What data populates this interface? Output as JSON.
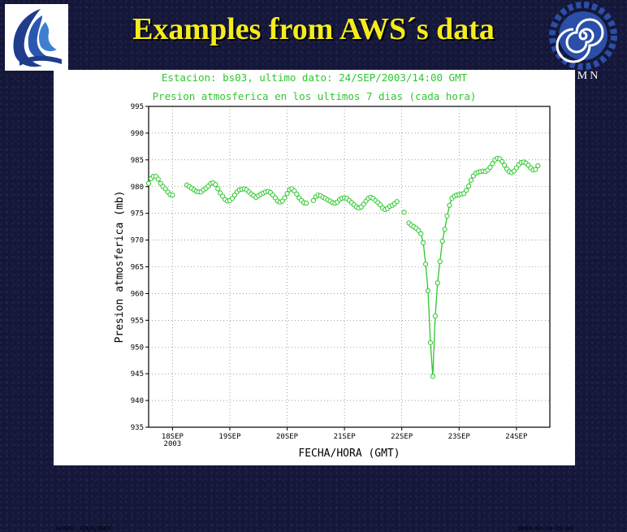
{
  "slide": {
    "title": "Examples from AWS´s data"
  },
  "logos": {
    "left": "hydrology-agency-logo",
    "right": "smn-spiral-logo",
    "right_text": "SMN"
  },
  "chart_data": {
    "type": "line",
    "header_line_1": "Estacion: bs03, ultimo dato: 24/SEP/2003/14:00 GMT",
    "header_line_2": "Presion atmosferica en los ultimos 7 dias (cada hora)",
    "xlabel": "FECHA/HORA (GMT)",
    "ylabel": "Presion atmosferica (mb)",
    "ylim": [
      935,
      995
    ],
    "yticks": [
      935,
      940,
      945,
      950,
      955,
      960,
      965,
      970,
      975,
      980,
      985,
      990,
      995
    ],
    "xlim": [
      "2003-09-17T14:00",
      "2003-09-24T14:00"
    ],
    "xticks": [
      "18SEP",
      "19SEP",
      "20SEP",
      "21SEP",
      "22SEP",
      "23SEP",
      "24SEP"
    ],
    "xtick_year": "2003",
    "grid": "dotted",
    "line_color": "#2ec72e",
    "series": [
      {
        "points": [
          [
            "2003-09-17T14:00",
            980.6
          ],
          [
            "2003-09-17T15:00",
            981.5
          ],
          [
            "2003-09-17T16:00",
            981.9
          ],
          [
            "2003-09-17T17:00",
            981.9
          ],
          [
            "2003-09-17T18:00",
            981.4
          ],
          [
            "2003-09-17T19:00",
            980.6
          ],
          [
            "2003-09-17T20:00",
            980.0
          ],
          [
            "2003-09-17T21:00",
            979.6
          ],
          [
            "2003-09-17T22:00",
            979.0
          ],
          [
            "2003-09-17T23:00",
            978.5
          ],
          [
            "2003-09-18T00:00",
            978.4
          ],
          [
            "2003-09-18T01:00",
            null
          ],
          [
            "2003-09-18T02:00",
            null
          ],
          [
            "2003-09-18T03:00",
            null
          ],
          [
            "2003-09-18T04:00",
            null
          ],
          [
            "2003-09-18T05:00",
            null
          ],
          [
            "2003-09-18T06:00",
            980.3
          ],
          [
            "2003-09-18T07:00",
            980.0
          ],
          [
            "2003-09-18T08:00",
            979.7
          ],
          [
            "2003-09-18T09:00",
            979.4
          ],
          [
            "2003-09-18T10:00",
            979.1
          ],
          [
            "2003-09-18T11:00",
            979.0
          ],
          [
            "2003-09-18T12:00",
            979.0
          ],
          [
            "2003-09-18T13:00",
            979.4
          ],
          [
            "2003-09-18T14:00",
            979.7
          ],
          [
            "2003-09-18T15:00",
            980.1
          ],
          [
            "2003-09-18T16:00",
            980.6
          ],
          [
            "2003-09-18T17:00",
            980.7
          ],
          [
            "2003-09-18T18:00",
            980.4
          ],
          [
            "2003-09-18T19:00",
            979.6
          ],
          [
            "2003-09-18T20:00",
            978.8
          ],
          [
            "2003-09-18T21:00",
            978.2
          ],
          [
            "2003-09-18T22:00",
            977.6
          ],
          [
            "2003-09-18T23:00",
            977.3
          ],
          [
            "2003-09-19T00:00",
            977.4
          ],
          [
            "2003-09-19T01:00",
            977.8
          ],
          [
            "2003-09-19T02:00",
            978.4
          ],
          [
            "2003-09-19T03:00",
            979.0
          ],
          [
            "2003-09-19T04:00",
            979.4
          ],
          [
            "2003-09-19T05:00",
            979.5
          ],
          [
            "2003-09-19T06:00",
            979.6
          ],
          [
            "2003-09-19T07:00",
            979.4
          ],
          [
            "2003-09-19T08:00",
            979.0
          ],
          [
            "2003-09-19T09:00",
            978.6
          ],
          [
            "2003-09-19T10:00",
            978.3
          ],
          [
            "2003-09-19T11:00",
            978.0
          ],
          [
            "2003-09-19T12:00",
            978.3
          ],
          [
            "2003-09-19T13:00",
            978.6
          ],
          [
            "2003-09-19T14:00",
            978.8
          ],
          [
            "2003-09-19T15:00",
            979.0
          ],
          [
            "2003-09-19T16:00",
            979.1
          ],
          [
            "2003-09-19T17:00",
            978.9
          ],
          [
            "2003-09-19T18:00",
            978.4
          ],
          [
            "2003-09-19T19:00",
            977.9
          ],
          [
            "2003-09-19T20:00",
            977.3
          ],
          [
            "2003-09-19T21:00",
            977.1
          ],
          [
            "2003-09-19T22:00",
            977.3
          ],
          [
            "2003-09-19T23:00",
            977.9
          ],
          [
            "2003-09-20T00:00",
            978.7
          ],
          [
            "2003-09-20T01:00",
            979.4
          ],
          [
            "2003-09-20T02:00",
            979.6
          ],
          [
            "2003-09-20T03:00",
            979.2
          ],
          [
            "2003-09-20T04:00",
            978.6
          ],
          [
            "2003-09-20T05:00",
            977.9
          ],
          [
            "2003-09-20T06:00",
            977.4
          ],
          [
            "2003-09-20T07:00",
            977.0
          ],
          [
            "2003-09-20T08:00",
            976.9
          ],
          [
            "2003-09-20T09:00",
            null
          ],
          [
            "2003-09-20T10:00",
            null
          ],
          [
            "2003-09-20T11:00",
            977.4
          ],
          [
            "2003-09-20T12:00",
            978.1
          ],
          [
            "2003-09-20T13:00",
            978.4
          ],
          [
            "2003-09-20T14:00",
            978.3
          ],
          [
            "2003-09-20T15:00",
            978.0
          ],
          [
            "2003-09-20T16:00",
            977.8
          ],
          [
            "2003-09-20T17:00",
            977.5
          ],
          [
            "2003-09-20T18:00",
            977.3
          ],
          [
            "2003-09-20T19:00",
            977.0
          ],
          [
            "2003-09-20T20:00",
            976.9
          ],
          [
            "2003-09-20T21:00",
            977.1
          ],
          [
            "2003-09-20T22:00",
            977.6
          ],
          [
            "2003-09-20T23:00",
            977.8
          ],
          [
            "2003-09-21T00:00",
            977.9
          ],
          [
            "2003-09-21T01:00",
            977.8
          ],
          [
            "2003-09-21T02:00",
            977.4
          ],
          [
            "2003-09-21T03:00",
            977.0
          ],
          [
            "2003-09-21T04:00",
            976.6
          ],
          [
            "2003-09-21T05:00",
            976.2
          ],
          [
            "2003-09-21T06:00",
            976.0
          ],
          [
            "2003-09-21T07:00",
            976.2
          ],
          [
            "2003-09-21T08:00",
            976.7
          ],
          [
            "2003-09-21T09:00",
            977.3
          ],
          [
            "2003-09-21T10:00",
            977.8
          ],
          [
            "2003-09-21T11:00",
            978.0
          ],
          [
            "2003-09-21T12:00",
            977.8
          ],
          [
            "2003-09-21T13:00",
            977.4
          ],
          [
            "2003-09-21T14:00",
            977.0
          ],
          [
            "2003-09-21T15:00",
            976.6
          ],
          [
            "2003-09-21T16:00",
            976.0
          ],
          [
            "2003-09-21T17:00",
            975.7
          ],
          [
            "2003-09-21T18:00",
            975.9
          ],
          [
            "2003-09-21T19:00",
            976.3
          ],
          [
            "2003-09-21T20:00",
            976.5
          ],
          [
            "2003-09-21T21:00",
            976.8
          ],
          [
            "2003-09-21T22:00",
            977.2
          ],
          [
            "2003-09-21T23:00",
            null
          ],
          [
            "2003-09-22T00:00",
            null
          ],
          [
            "2003-09-22T01:00",
            975.2
          ],
          [
            "2003-09-22T02:00",
            null
          ],
          [
            "2003-09-22T03:00",
            973.2
          ],
          [
            "2003-09-22T04:00",
            972.8
          ],
          [
            "2003-09-22T05:00",
            972.5
          ],
          [
            "2003-09-22T06:00",
            972.2
          ],
          [
            "2003-09-22T07:00",
            971.8
          ],
          [
            "2003-09-22T08:00",
            971.2
          ],
          [
            "2003-09-22T09:00",
            969.5
          ],
          [
            "2003-09-22T10:00",
            965.5
          ],
          [
            "2003-09-22T11:00",
            960.5
          ],
          [
            "2003-09-22T12:00",
            950.8
          ],
          [
            "2003-09-22T13:00",
            944.5
          ],
          [
            "2003-09-22T14:00",
            955.8
          ],
          [
            "2003-09-22T15:00",
            962.0
          ],
          [
            "2003-09-22T16:00",
            966.0
          ],
          [
            "2003-09-22T17:00",
            969.8
          ],
          [
            "2003-09-22T18:00",
            972.0
          ],
          [
            "2003-09-22T19:00",
            974.5
          ],
          [
            "2003-09-22T20:00",
            976.5
          ],
          [
            "2003-09-22T21:00",
            977.8
          ],
          [
            "2003-09-22T22:00",
            978.2
          ],
          [
            "2003-09-22T23:00",
            978.4
          ],
          [
            "2003-09-23T00:00",
            978.5
          ],
          [
            "2003-09-23T01:00",
            978.6
          ],
          [
            "2003-09-23T02:00",
            978.7
          ],
          [
            "2003-09-23T03:00",
            979.3
          ],
          [
            "2003-09-23T04:00",
            980.1
          ],
          [
            "2003-09-23T05:00",
            981.2
          ],
          [
            "2003-09-23T06:00",
            982.0
          ],
          [
            "2003-09-23T07:00",
            982.5
          ],
          [
            "2003-09-23T08:00",
            982.7
          ],
          [
            "2003-09-23T09:00",
            982.8
          ],
          [
            "2003-09-23T10:00",
            982.9
          ],
          [
            "2003-09-23T11:00",
            982.8
          ],
          [
            "2003-09-23T12:00",
            983.1
          ],
          [
            "2003-09-23T13:00",
            983.6
          ],
          [
            "2003-09-23T14:00",
            984.3
          ],
          [
            "2003-09-23T15:00",
            985.0
          ],
          [
            "2003-09-23T16:00",
            985.3
          ],
          [
            "2003-09-23T17:00",
            985.2
          ],
          [
            "2003-09-23T18:00",
            984.7
          ],
          [
            "2003-09-23T19:00",
            984.0
          ],
          [
            "2003-09-23T20:00",
            983.3
          ],
          [
            "2003-09-23T21:00",
            982.8
          ],
          [
            "2003-09-23T22:00",
            982.6
          ],
          [
            "2003-09-23T23:00",
            982.9
          ],
          [
            "2003-09-24T00:00",
            983.5
          ],
          [
            "2003-09-24T01:00",
            984.1
          ],
          [
            "2003-09-24T02:00",
            984.5
          ],
          [
            "2003-09-24T03:00",
            984.6
          ],
          [
            "2003-09-24T04:00",
            984.4
          ],
          [
            "2003-09-24T05:00",
            984.0
          ],
          [
            "2003-09-24T06:00",
            983.5
          ],
          [
            "2003-09-24T07:00",
            983.1
          ],
          [
            "2003-09-24T08:00",
            983.2
          ],
          [
            "2003-09-24T09:00",
            983.9
          ]
        ]
      }
    ]
  },
  "footer": {
    "credit": "GrADS: COLA/IGES",
    "timestamp": "2003-09-24-15:44"
  }
}
